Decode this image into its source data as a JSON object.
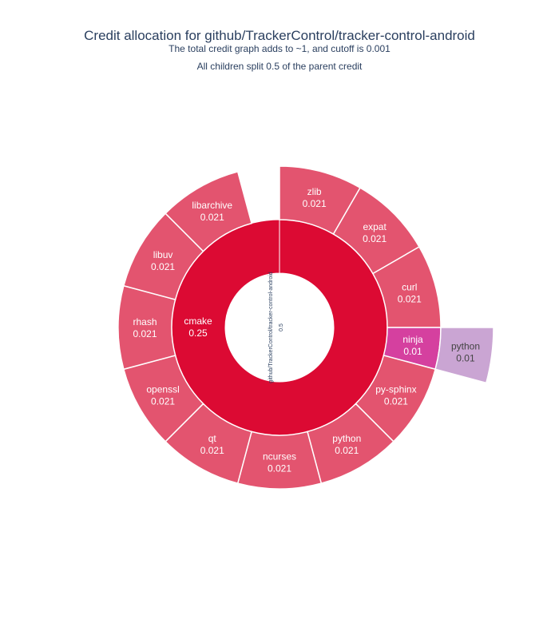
{
  "chart_data": {
    "type": "sunburst",
    "title": "Credit allocation for github/TrackerControl/tracker-control-android",
    "subtitle_lines": [
      "The total credit graph adds to ~1, and cutoff is 0.001",
      "All children split 0.5 of the parent credit"
    ],
    "root": {
      "label": "github/TrackerControl/tracker-control-android",
      "value": "0.5",
      "credit": 0.5
    },
    "rings": [
      [
        {
          "label": "cmake",
          "value": "0.25",
          "credit": 0.25,
          "color": "#dc0a33",
          "text_color": "#ffffff"
        }
      ],
      [
        {
          "label": "zlib",
          "value": "0.021",
          "credit": 0.021,
          "color": "#e3546f",
          "text_color": "#ffffff"
        },
        {
          "label": "expat",
          "value": "0.021",
          "credit": 0.021,
          "color": "#e3546f",
          "text_color": "#ffffff"
        },
        {
          "label": "curl",
          "value": "0.021",
          "credit": 0.021,
          "color": "#e3546f",
          "text_color": "#ffffff"
        },
        {
          "label": "ninja",
          "value": "0.01",
          "credit": 0.01,
          "color": "#d5409f",
          "text_color": "#ffffff"
        },
        {
          "label": "py-sphinx",
          "value": "0.021",
          "credit": 0.021,
          "color": "#e3546f",
          "text_color": "#ffffff"
        },
        {
          "label": "python",
          "value": "0.021",
          "credit": 0.021,
          "color": "#e3546f",
          "text_color": "#ffffff"
        },
        {
          "label": "ncurses",
          "value": "0.021",
          "credit": 0.021,
          "color": "#e3546f",
          "text_color": "#ffffff"
        },
        {
          "label": "qt",
          "value": "0.021",
          "credit": 0.021,
          "color": "#e3546f",
          "text_color": "#ffffff"
        },
        {
          "label": "openssl",
          "value": "0.021",
          "credit": 0.021,
          "color": "#e3546f",
          "text_color": "#ffffff"
        },
        {
          "label": "rhash",
          "value": "0.021",
          "credit": 0.021,
          "color": "#e3546f",
          "text_color": "#ffffff"
        },
        {
          "label": "libuv",
          "value": "0.021",
          "credit": 0.021,
          "color": "#e3546f",
          "text_color": "#ffffff"
        },
        {
          "label": "libarchive",
          "value": "0.021",
          "credit": 0.021,
          "color": "#e3546f",
          "text_color": "#ffffff"
        }
      ],
      [
        {
          "label": "python",
          "value": "0.01",
          "credit": 0.01,
          "color": "#caa5d3",
          "text_color": "#444444"
        }
      ]
    ],
    "total_angle_fraction": 0.5
  }
}
